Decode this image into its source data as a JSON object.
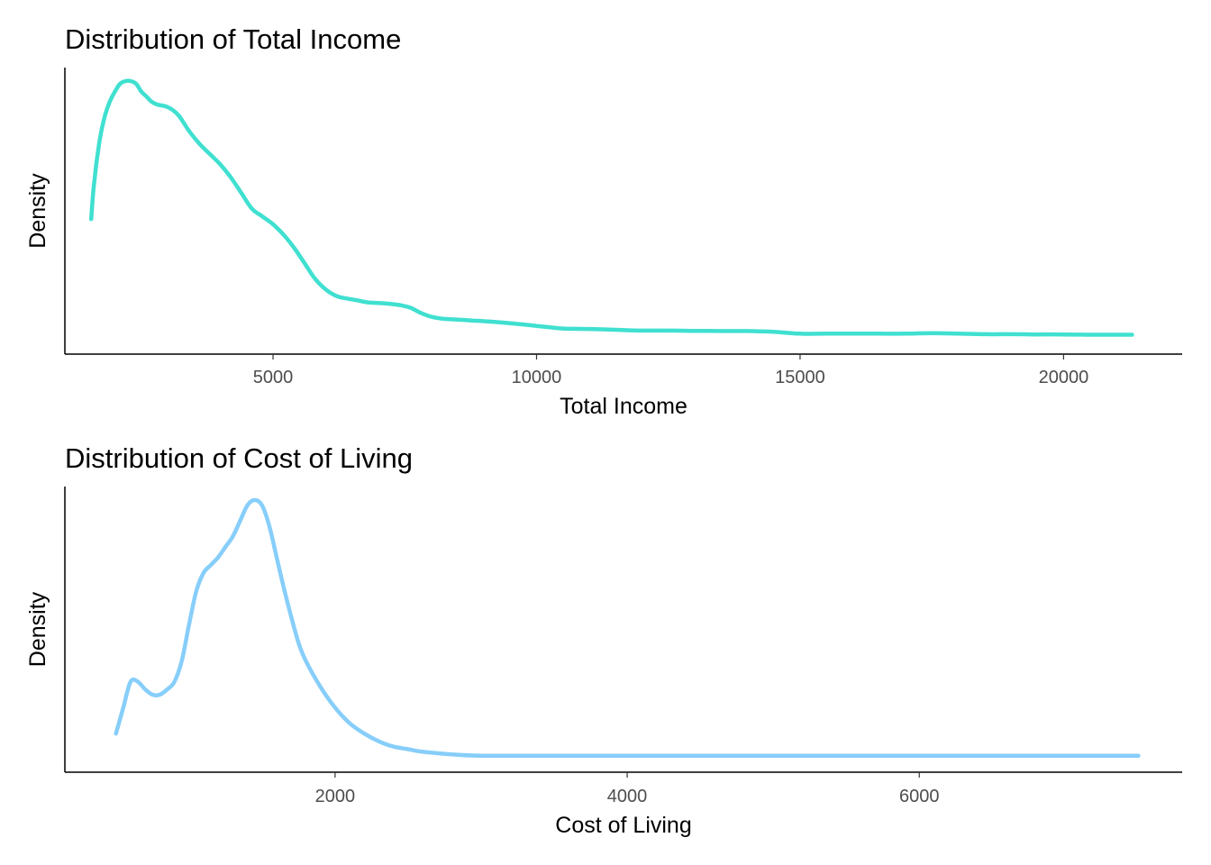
{
  "chart_data": [
    {
      "type": "line",
      "title": "Distribution of Total Income",
      "xlabel": "Total Income",
      "ylabel": "Density",
      "xlim": [
        1050,
        22250
      ],
      "ylim": [
        0,
        1.0
      ],
      "x_ticks": [
        5000,
        10000,
        15000,
        20000
      ],
      "y_ticks_shown": false,
      "grid": false,
      "legend": "none",
      "color": "#40E0D0",
      "series": [
        {
          "x": [
            1550,
            1600,
            1700,
            1800,
            1900,
            2000,
            2100,
            2200,
            2300,
            2400,
            2500,
            2600,
            2700,
            2800,
            3000,
            3200,
            3400,
            3600,
            3800,
            4000,
            4200,
            4400,
            4600,
            4800,
            5000,
            5200,
            5400,
            5600,
            5800,
            6000,
            6200,
            6400,
            6600,
            6800,
            7000,
            7200,
            7400,
            7600,
            7800,
            8000,
            8200,
            8400,
            8600,
            8800,
            9000,
            9500,
            10000,
            10500,
            11000,
            11500,
            12000,
            12500,
            13000,
            13500,
            14000,
            14500,
            15000,
            15500,
            16000,
            16500,
            17000,
            17500,
            18000,
            18500,
            19000,
            19500,
            20000,
            20500,
            21000,
            21300
          ],
          "y": [
            0.47,
            0.6,
            0.76,
            0.86,
            0.92,
            0.96,
            0.99,
            1.0,
            1.0,
            0.99,
            0.96,
            0.94,
            0.92,
            0.91,
            0.9,
            0.87,
            0.81,
            0.76,
            0.72,
            0.68,
            0.63,
            0.57,
            0.51,
            0.48,
            0.45,
            0.41,
            0.36,
            0.3,
            0.24,
            0.2,
            0.175,
            0.165,
            0.158,
            0.15,
            0.148,
            0.145,
            0.14,
            0.13,
            0.11,
            0.095,
            0.088,
            0.085,
            0.083,
            0.08,
            0.078,
            0.07,
            0.06,
            0.05,
            0.048,
            0.045,
            0.042,
            0.042,
            0.041,
            0.04,
            0.04,
            0.037,
            0.03,
            0.03,
            0.03,
            0.03,
            0.03,
            0.032,
            0.03,
            0.028,
            0.028,
            0.027,
            0.027,
            0.026,
            0.026,
            0.026
          ]
        }
      ]
    },
    {
      "type": "line",
      "title": "Distribution of Cost of Living",
      "xlabel": "Cost of Living",
      "ylabel": "Density",
      "xlim": [
        150,
        7800
      ],
      "ylim": [
        0,
        1.0
      ],
      "x_ticks": [
        2000,
        4000,
        6000
      ],
      "y_ticks_shown": false,
      "grid": false,
      "legend": "none",
      "color": "#87CEFA",
      "series": [
        {
          "x": [
            500,
            550,
            600,
            650,
            700,
            750,
            800,
            850,
            900,
            950,
            1000,
            1050,
            1100,
            1150,
            1200,
            1250,
            1300,
            1350,
            1400,
            1450,
            1500,
            1550,
            1600,
            1650,
            1700,
            1750,
            1800,
            1900,
            2000,
            2100,
            2200,
            2300,
            2400,
            2500,
            2600,
            2800,
            3000,
            3500,
            4000,
            5000,
            6000,
            7000,
            7500
          ],
          "y": [
            0.1,
            0.2,
            0.3,
            0.3,
            0.27,
            0.25,
            0.25,
            0.27,
            0.3,
            0.38,
            0.52,
            0.65,
            0.72,
            0.75,
            0.78,
            0.82,
            0.86,
            0.92,
            0.98,
            1.0,
            0.98,
            0.9,
            0.78,
            0.66,
            0.55,
            0.45,
            0.38,
            0.28,
            0.2,
            0.14,
            0.1,
            0.07,
            0.05,
            0.04,
            0.03,
            0.02,
            0.015,
            0.015,
            0.015,
            0.015,
            0.015,
            0.015,
            0.015
          ]
        }
      ]
    }
  ]
}
